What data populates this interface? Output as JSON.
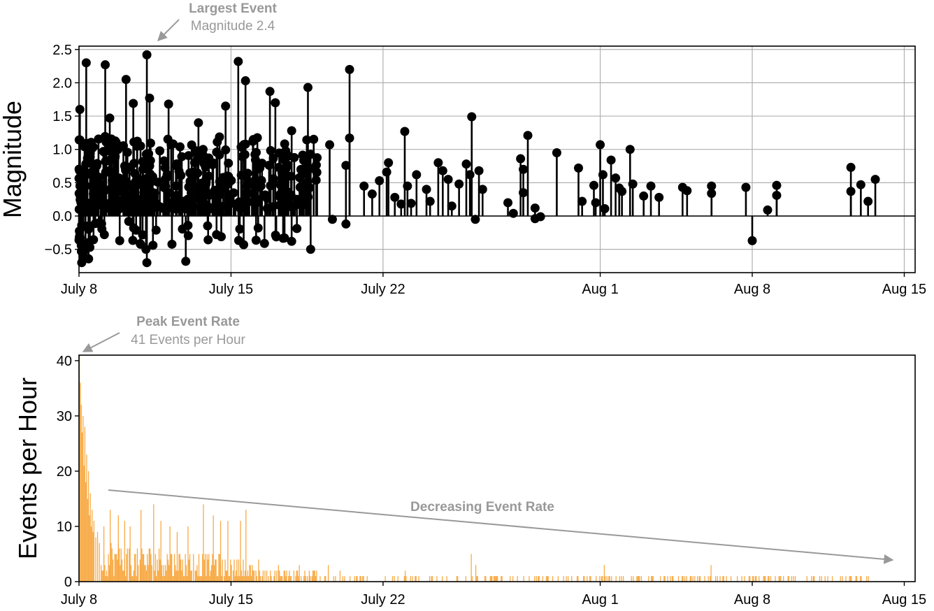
{
  "chart_data": [
    {
      "type": "stem",
      "ylabel": "Magnitude",
      "ylim": [
        -0.85,
        2.55
      ],
      "xlim": [
        "2019-07-08",
        "2019-08-15T12:00"
      ],
      "x_ticks": [
        "July 8",
        "July 15",
        "July 22",
        "Aug 1",
        "Aug 8",
        "Aug 15"
      ],
      "x_tick_dates": [
        "2019-07-08",
        "2019-07-15",
        "2019-07-22",
        "2019-08-01",
        "2019-08-08",
        "2019-08-15"
      ],
      "y_ticks": [
        "−0.5",
        "0.0",
        "0.5",
        "1.0",
        "1.5",
        "2.0",
        "2.5"
      ],
      "y_tick_values": [
        -0.5,
        0.0,
        0.5,
        1.0,
        1.5,
        2.0,
        2.5
      ],
      "grid": true,
      "marker_color": "#000000",
      "annotation": {
        "title": "Largest Event",
        "subtitle": "Magnitude 2.4"
      },
      "dense_period": {
        "start": "2019-07-08",
        "end": "2019-07-19",
        "count": 420,
        "min": -0.7,
        "max": 1.9
      },
      "points": [
        [
          "2019-07-08T01:00",
          1.6
        ],
        [
          "2019-07-08T08:00",
          2.3
        ],
        [
          "2019-07-08T03:00",
          -0.7
        ],
        [
          "2019-07-08T12:00",
          -0.47
        ],
        [
          "2019-07-09T05:00",
          2.27
        ],
        [
          "2019-07-09T10:00",
          1.47
        ],
        [
          "2019-07-09T04:00",
          -0.28
        ],
        [
          "2019-07-09T21:00",
          -0.37
        ],
        [
          "2019-07-10T04:00",
          2.05
        ],
        [
          "2019-07-10T07:00",
          -0.08
        ],
        [
          "2019-07-10T12:00",
          1.69
        ],
        [
          "2019-07-11T03:00",
          2.42
        ],
        [
          "2019-07-11T02:00",
          -0.5
        ],
        [
          "2019-07-11T03:00",
          -0.7
        ],
        [
          "2019-07-11T06:00",
          1.77
        ],
        [
          "2019-07-12T03:00",
          1.68
        ],
        [
          "2019-07-12T22:00",
          -0.68
        ],
        [
          "2019-07-13T12:00",
          1.4
        ],
        [
          "2019-07-14T08:00",
          -0.28
        ],
        [
          "2019-07-14T18:00",
          1.65
        ],
        [
          "2019-07-15T08:00",
          2.32
        ],
        [
          "2019-07-15T14:00",
          -0.43
        ],
        [
          "2019-07-15T16:00",
          2.03
        ],
        [
          "2019-07-16T06:00",
          -0.18
        ],
        [
          "2019-07-16T19:00",
          1.87
        ],
        [
          "2019-07-17T01:00",
          1.7
        ],
        [
          "2019-07-17T19:00",
          1.28
        ],
        [
          "2019-07-17T19:00",
          -0.38
        ],
        [
          "2019-07-18T13:00",
          1.93
        ],
        [
          "2019-07-18T16:00",
          -0.5
        ],
        [
          "2019-07-19T13:00",
          1.07
        ],
        [
          "2019-07-19T16:00",
          -0.05
        ],
        [
          "2019-07-20T07:00",
          -0.12
        ],
        [
          "2019-07-20T11:00",
          2.2
        ],
        [
          "2019-07-20T11:00",
          1.17
        ],
        [
          "2019-07-20T07:00",
          0.76
        ],
        [
          "2019-07-21T03:00",
          0.45
        ],
        [
          "2019-07-21T12:00",
          0.33
        ],
        [
          "2019-07-21T20:00",
          0.53
        ],
        [
          "2019-07-22T04:00",
          0.66
        ],
        [
          "2019-07-22T06:00",
          0.8
        ],
        [
          "2019-07-22T13:00",
          0.28
        ],
        [
          "2019-07-22T20:00",
          0.18
        ],
        [
          "2019-07-23T00:00",
          1.27
        ],
        [
          "2019-07-23T03:00",
          0.45
        ],
        [
          "2019-07-23T07:00",
          0.19
        ],
        [
          "2019-07-23T13:00",
          0.62
        ],
        [
          "2019-07-24T00:00",
          0.4
        ],
        [
          "2019-07-24T04:00",
          0.22
        ],
        [
          "2019-07-24T13:00",
          0.8
        ],
        [
          "2019-07-24T18:00",
          0.68
        ],
        [
          "2019-07-25T00:00",
          0.55
        ],
        [
          "2019-07-25T04:00",
          0.15
        ],
        [
          "2019-07-25T12:00",
          0.48
        ],
        [
          "2019-07-25T20:00",
          0.78
        ],
        [
          "2019-07-26T00:00",
          0.62
        ],
        [
          "2019-07-26T02:00",
          1.49
        ],
        [
          "2019-07-26T06:00",
          -0.05
        ],
        [
          "2019-07-26T10:00",
          0.68
        ],
        [
          "2019-07-26T14:00",
          0.4
        ],
        [
          "2019-07-27T18:00",
          0.2
        ],
        [
          "2019-07-28T00:00",
          0.04
        ],
        [
          "2019-07-28T08:00",
          0.86
        ],
        [
          "2019-07-28T11:00",
          0.7
        ],
        [
          "2019-07-28T11:00",
          0.35
        ],
        [
          "2019-07-28T16:00",
          1.21
        ],
        [
          "2019-07-29T00:00",
          0.12
        ],
        [
          "2019-07-29T00:00",
          -0.04
        ],
        [
          "2019-07-29T06:00",
          -0.01
        ],
        [
          "2019-07-30T00:00",
          0.95
        ],
        [
          "2019-07-31T00:00",
          0.72
        ],
        [
          "2019-07-31T04:00",
          0.22
        ],
        [
          "2019-07-31T17:00",
          0.46
        ],
        [
          "2019-07-31T19:00",
          0.2
        ],
        [
          "2019-08-01T00:00",
          1.07
        ],
        [
          "2019-08-01T03:00",
          0.62
        ],
        [
          "2019-08-01T05:00",
          0.11
        ],
        [
          "2019-08-01T12:00",
          0.84
        ],
        [
          "2019-08-01T17:00",
          0.57
        ],
        [
          "2019-08-01T21:00",
          0.42
        ],
        [
          "2019-08-02T00:00",
          0.37
        ],
        [
          "2019-08-02T09:00",
          1.0
        ],
        [
          "2019-08-02T12:00",
          0.48
        ],
        [
          "2019-08-03T00:00",
          0.3
        ],
        [
          "2019-08-03T08:00",
          0.45
        ],
        [
          "2019-08-03T17:00",
          0.28
        ],
        [
          "2019-08-04T19:00",
          0.43
        ],
        [
          "2019-08-05T00:00",
          0.38
        ],
        [
          "2019-08-06T03:00",
          0.45
        ],
        [
          "2019-08-06T03:00",
          0.34
        ],
        [
          "2019-08-07T17:00",
          0.43
        ],
        [
          "2019-08-08T00:00",
          -0.37
        ],
        [
          "2019-08-08T17:00",
          0.09
        ],
        [
          "2019-08-09T03:00",
          0.46
        ],
        [
          "2019-08-09T03:00",
          0.31
        ],
        [
          "2019-08-12T13:00",
          0.73
        ],
        [
          "2019-08-12T13:00",
          0.37
        ],
        [
          "2019-08-13T00:00",
          0.47
        ],
        [
          "2019-08-13T08:00",
          0.22
        ],
        [
          "2019-08-13T16:00",
          0.55
        ]
      ]
    },
    {
      "type": "bar",
      "ylabel": "Events per Hour",
      "ylim": [
        0,
        41
      ],
      "xlim": [
        "2019-07-08",
        "2019-08-15T12:00"
      ],
      "bin": "hour",
      "x_ticks": [
        "July 8",
        "July 15",
        "July 22",
        "Aug 1",
        "Aug 8",
        "Aug 15"
      ],
      "x_tick_dates": [
        "2019-07-08",
        "2019-07-15",
        "2019-07-22",
        "2019-08-01",
        "2019-08-08",
        "2019-08-15"
      ],
      "y_ticks": [
        "0",
        "10",
        "20",
        "30",
        "40"
      ],
      "y_tick_values": [
        0,
        10,
        20,
        30,
        40
      ],
      "grid": false,
      "bar_color": "#F8AA45",
      "annotation": {
        "title": "Peak Event Rate",
        "subtitle": "41 Events per Hour"
      },
      "trend_label": "Decreasing Event Rate",
      "bars": [
        [
          "2019-07-08T00:00",
          41
        ],
        [
          "2019-07-08T01:00",
          36
        ],
        [
          "2019-07-08T02:00",
          32
        ],
        [
          "2019-07-08T03:00",
          27
        ],
        [
          "2019-07-08T04:00",
          30
        ],
        [
          "2019-07-08T05:00",
          21
        ],
        [
          "2019-07-08T06:00",
          28
        ],
        [
          "2019-07-08T07:00",
          18
        ],
        [
          "2019-07-08T08:00",
          23
        ],
        [
          "2019-07-08T09:00",
          15
        ],
        [
          "2019-07-08T10:00",
          20
        ],
        [
          "2019-07-08T11:00",
          12
        ],
        [
          "2019-07-08T12:00",
          16
        ],
        [
          "2019-07-08T13:00",
          10
        ],
        [
          "2019-07-08T14:00",
          13
        ],
        [
          "2019-07-08T15:00",
          9
        ],
        [
          "2019-07-08T16:00",
          11
        ],
        [
          "2019-07-08T18:00",
          8
        ],
        [
          "2019-07-08T20:00",
          9
        ],
        [
          "2019-07-08T22:00",
          7
        ],
        [
          "2019-07-09T03:00",
          10
        ],
        [
          "2019-07-09T10:00",
          13
        ],
        [
          "2019-07-09T19:00",
          12
        ],
        [
          "2019-07-10T02:00",
          11
        ],
        [
          "2019-07-10T08:00",
          10
        ],
        [
          "2019-07-10T20:00",
          13
        ],
        [
          "2019-07-11T10:00",
          14
        ],
        [
          "2019-07-11T18:00",
          11
        ],
        [
          "2019-07-12T04:00",
          10
        ],
        [
          "2019-07-12T12:00",
          9
        ],
        [
          "2019-07-13T00:00",
          10
        ],
        [
          "2019-07-13T17:00",
          14
        ],
        [
          "2019-07-14T04:00",
          12
        ],
        [
          "2019-07-14T12:00",
          11
        ],
        [
          "2019-07-14T20:00",
          11
        ],
        [
          "2019-07-15T10:00",
          11
        ],
        [
          "2019-07-15T16:00",
          13
        ],
        [
          "2019-07-16T06:00",
          4
        ],
        [
          "2019-07-17T04:00",
          3
        ],
        [
          "2019-07-18T03:00",
          3
        ],
        [
          "2019-07-19T11:00",
          3
        ],
        [
          "2019-07-20T00:00",
          2
        ],
        [
          "2019-07-23T00:00",
          2
        ],
        [
          "2019-07-26T01:00",
          5
        ],
        [
          "2019-07-26T06:00",
          3
        ],
        [
          "2019-08-01T04:00",
          3
        ],
        [
          "2019-08-06T02:00",
          3
        ]
      ],
      "background_rates": [
        {
          "start": "2019-07-09T00:00",
          "end": "2019-07-16T00:00",
          "max": 7
        },
        {
          "start": "2019-07-16T00:00",
          "end": "2019-07-19T00:00",
          "max": 2
        },
        {
          "start": "2019-07-19T00:00",
          "end": "2019-07-27T00:00",
          "max": 1
        },
        {
          "start": "2019-07-27T00:00",
          "end": "2019-08-14T00:00",
          "max": 1
        }
      ]
    }
  ]
}
